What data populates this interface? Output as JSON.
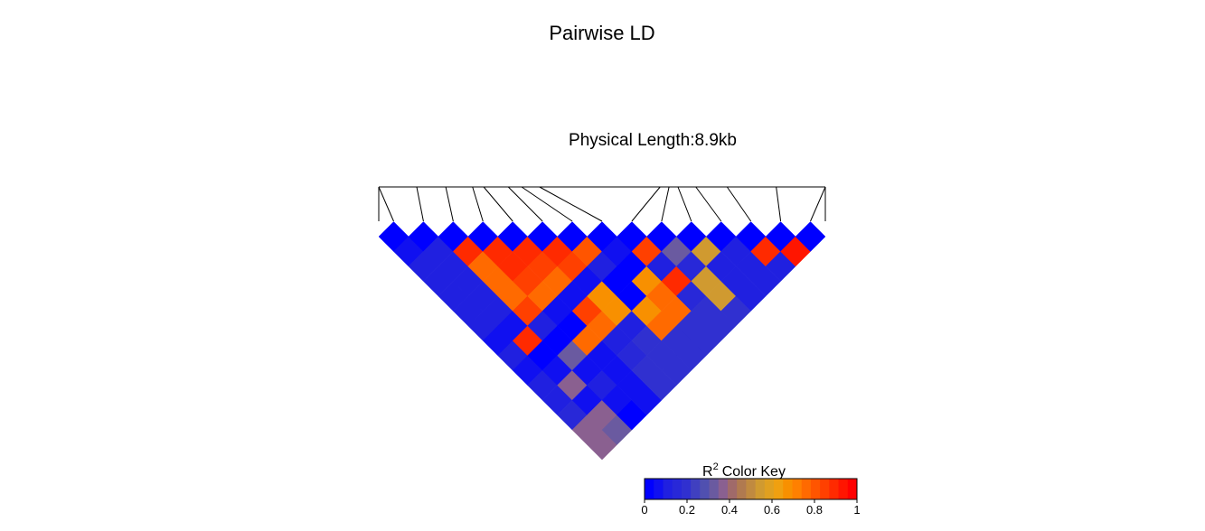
{
  "chart_data": {
    "type": "heatmap",
    "title": "Pairwise LD",
    "subtitle": "Physical Length:8.9kb",
    "snp_count": 15,
    "snp_positions": [
      0.0,
      0.085,
      0.15,
      0.21,
      0.235,
      0.29,
      0.32,
      0.36,
      0.63,
      0.65,
      0.67,
      0.71,
      0.78,
      0.89,
      1.0
    ],
    "r2_matrix": [
      [
        0.0,
        0.05,
        0.1,
        0.1,
        0.1,
        0.1,
        0.1,
        0.05,
        0.1,
        0.05,
        0.1,
        0.1,
        0.15,
        0.35,
        0.35
      ],
      [
        0.05,
        0.0,
        0.1,
        0.1,
        0.1,
        0.1,
        0.1,
        0.05,
        0.9,
        0.0,
        0.05,
        0.35,
        0.05,
        0.35,
        0.3
      ],
      [
        0.1,
        0.1,
        0.0,
        0.9,
        0.75,
        0.75,
        0.75,
        0.85,
        0.1,
        0.0,
        0.3,
        0.05,
        0.1,
        0.05,
        0.0
      ],
      [
        0.1,
        0.1,
        0.9,
        0.0,
        0.9,
        0.9,
        0.85,
        0.75,
        0.05,
        0.0,
        0.75,
        0.05,
        0.05,
        0.05,
        0.05
      ],
      [
        0.1,
        0.1,
        0.75,
        0.9,
        0.0,
        0.9,
        0.85,
        0.75,
        0.05,
        0.85,
        0.75,
        0.1,
        0.15,
        0.2,
        0.2
      ],
      [
        0.1,
        0.1,
        0.75,
        0.9,
        0.9,
        0.0,
        0.9,
        0.85,
        0.05,
        0.7,
        0.7,
        0.1,
        0.2,
        0.2,
        0.2
      ],
      [
        0.1,
        0.1,
        0.75,
        0.85,
        0.85,
        0.9,
        0.0,
        0.8,
        0.1,
        0.0,
        0.0,
        0.7,
        0.75,
        0.2,
        0.2
      ],
      [
        0.05,
        0.05,
        0.85,
        0.75,
        0.75,
        0.85,
        0.8,
        0.0,
        0.05,
        0.0,
        0.7,
        0.75,
        0.75,
        0.2,
        0.2
      ],
      [
        0.1,
        0.9,
        0.1,
        0.05,
        0.05,
        0.05,
        0.1,
        0.05,
        0.0,
        0.85,
        0.1,
        0.9,
        0.15,
        0.2,
        0.2
      ],
      [
        0.05,
        0.0,
        0.0,
        0.0,
        0.85,
        0.7,
        0.0,
        0.0,
        0.85,
        0.0,
        0.3,
        0.15,
        0.55,
        0.55,
        0.2
      ],
      [
        0.1,
        0.05,
        0.3,
        0.75,
        0.75,
        0.7,
        0.0,
        0.7,
        0.1,
        0.3,
        0.0,
        0.55,
        0.1,
        0.1,
        0.1
      ],
      [
        0.1,
        0.35,
        0.05,
        0.05,
        0.1,
        0.1,
        0.7,
        0.75,
        0.9,
        0.15,
        0.55,
        0.0,
        0.1,
        0.1,
        0.1
      ],
      [
        0.15,
        0.05,
        0.1,
        0.05,
        0.15,
        0.2,
        0.75,
        0.75,
        0.15,
        0.55,
        0.1,
        0.1,
        0.0,
        0.9,
        0.1
      ],
      [
        0.35,
        0.35,
        0.05,
        0.05,
        0.2,
        0.2,
        0.2,
        0.2,
        0.2,
        0.55,
        0.1,
        0.1,
        0.9,
        0.0,
        0.95
      ],
      [
        0.35,
        0.3,
        0.0,
        0.05,
        0.2,
        0.2,
        0.2,
        0.2,
        0.2,
        0.2,
        0.1,
        0.1,
        0.1,
        0.95,
        0.0
      ]
    ],
    "color_key": {
      "title": "Color Key",
      "r_label": "R",
      "superscript": "2",
      "range": [
        0,
        1
      ],
      "ticks": [
        "0",
        "0.2",
        "0.4",
        "0.6",
        "0.8",
        "1"
      ],
      "tick_values": [
        0,
        0.2,
        0.4,
        0.6,
        0.8,
        1
      ],
      "colors": [
        "#0000FF",
        "#1010F0",
        "#2020E0",
        "#2828D8",
        "#3030D0",
        "#4040C0",
        "#5050B0",
        "#6A5AA0",
        "#8A6090",
        "#A06A6A",
        "#B07A50",
        "#C08A40",
        "#D09A30",
        "#E0A020",
        "#F0A010",
        "#F89000",
        "#FF8000",
        "#FF6A00",
        "#FF5500",
        "#FF4000",
        "#FF2A00",
        "#FF1500",
        "#FF0000"
      ]
    }
  }
}
